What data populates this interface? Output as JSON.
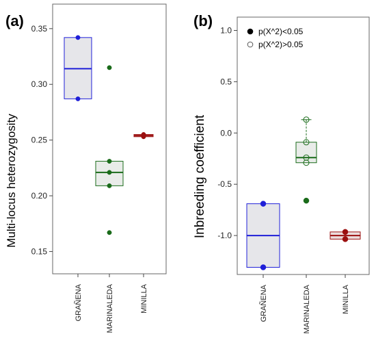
{
  "chart_data": [
    {
      "type": "box",
      "panel_label": "(a)",
      "ylabel": "Multi-locus heterozygosity",
      "ylim": [
        0.13,
        0.372
      ],
      "yticks": [
        0.15,
        0.2,
        0.25,
        0.3,
        0.35
      ],
      "ytick_labels": [
        "0.15",
        "0.20",
        "0.25",
        "0.30",
        "0.35"
      ],
      "categories": [
        "GRAÑENA",
        "MARINALEDA",
        "MINILLA"
      ],
      "groups": [
        {
          "name": "GRAÑENA",
          "color": "#1f1fd8",
          "box_fill": "#e6e6ea",
          "q1": 0.287,
          "median": 0.314,
          "q3": 0.342,
          "whisker_low": 0.287,
          "whisker_high": 0.342,
          "points": [
            {
              "y": 0.342,
              "sig": true
            },
            {
              "y": 0.287,
              "sig": true
            }
          ]
        },
        {
          "name": "MARINALEDA",
          "color": "#1a6b1a",
          "box_fill": "#e9ece9",
          "q1": 0.209,
          "median": 0.221,
          "q3": 0.231,
          "whisker_low": 0.209,
          "whisker_high": 0.231,
          "points": [
            {
              "y": 0.315,
              "sig": true
            },
            {
              "y": 0.231,
              "sig": true
            },
            {
              "y": 0.221,
              "sig": true
            },
            {
              "y": 0.209,
              "sig": true
            },
            {
              "y": 0.167,
              "sig": true
            }
          ]
        },
        {
          "name": "MINILLA",
          "color": "#9b1010",
          "box_fill": "#eddede",
          "q1": 0.253,
          "median": 0.254,
          "q3": 0.255,
          "whisker_low": 0.253,
          "whisker_high": 0.255,
          "points": [
            {
              "y": 0.255,
              "sig": true
            },
            {
              "y": 0.253,
              "sig": true
            }
          ]
        }
      ]
    },
    {
      "type": "box",
      "panel_label": "(b)",
      "ylabel": "Inbreeding coefficient",
      "ylim": [
        -1.38,
        1.13
      ],
      "yticks": [
        1.0,
        0.5,
        0.0,
        -0.5,
        -1.0
      ],
      "ytick_labels": [
        "1.0",
        "0.5",
        "0.0",
        "-0.5",
        "-1.0"
      ],
      "categories": [
        "GRAÑENA",
        "MARINALEDA",
        "MINILLA"
      ],
      "legend": {
        "position": "top-left",
        "entries": [
          {
            "label": "p(X^2)<0.05",
            "filled": true
          },
          {
            "label": "p(X^2)>0.05",
            "filled": false
          }
        ]
      },
      "groups": [
        {
          "name": "GRAÑENA",
          "color": "#1f1fd8",
          "box_fill": "#e6e6ea",
          "q1": -1.31,
          "median": -1.0,
          "q3": -0.69,
          "whisker_low": -1.31,
          "whisker_high": -0.69,
          "points": [
            {
              "y": -0.69,
              "sig": true
            },
            {
              "y": -1.31,
              "sig": true
            }
          ]
        },
        {
          "name": "MARINALEDA",
          "color": "#1a6b1a",
          "box_fill": "#e9ece9",
          "q1": -0.29,
          "median": -0.24,
          "q3": -0.09,
          "whisker_low": -0.29,
          "whisker_high": 0.13,
          "points": [
            {
              "y": 0.13,
              "sig": false
            },
            {
              "y": -0.09,
              "sig": false
            },
            {
              "y": -0.24,
              "sig": false
            },
            {
              "y": -0.29,
              "sig": false
            },
            {
              "y": -0.66,
              "sig": true
            }
          ]
        },
        {
          "name": "MINILLA",
          "color": "#9b1010",
          "box_fill": "#eddede",
          "q1": -1.035,
          "median": -1.0,
          "q3": -0.965,
          "whisker_low": -1.035,
          "whisker_high": -0.965,
          "points": [
            {
              "y": -0.965,
              "sig": true
            },
            {
              "y": -1.035,
              "sig": true
            }
          ]
        }
      ]
    }
  ]
}
